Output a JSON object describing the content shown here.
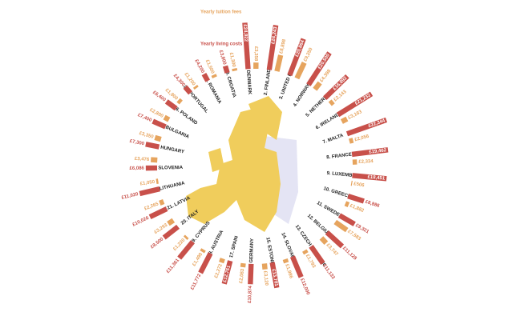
{
  "chart_data": {
    "type": "radial-bar",
    "categories": [
      "1. DENMARK",
      "2. FINLAND",
      "3. UNITED KINGDOM",
      "4. NORWAY",
      "5. NETHERLANDS",
      "6. IRELAND",
      "7. MALTA",
      "8. FRANCE",
      "9. LUXEMBOURG",
      "10. GREECE",
      "11. SWEDEN",
      "12. BELGIUM",
      "13. CZECH REPUBLIC",
      "14. SLOVAKIA",
      "15. ESTONIA",
      "16. GERMANY",
      "17. SPAIN",
      "18. AUSTRIA",
      "19. CYPRUS",
      "20. ITALY",
      "21. LATVIA",
      "22. LITHUANIA",
      "23. SLOVENIA",
      "24. HUNGARY",
      "25. BULGARIA",
      "26. POLAND",
      "27. PORTUGAL",
      "28. ROMANIA",
      "29. CROATIA"
    ],
    "series": [
      {
        "name": "Yearly living costs",
        "color": "#c8504a",
        "values": [
          24922,
          24243,
          20864,
          20500,
          16892,
          21232,
          22344,
          19462,
          18451,
          8886,
          9321,
          11128,
          11133,
          12000,
          13781,
          10874,
          12761,
          11772,
          11361,
          9500,
          10026,
          11020,
          6086,
          7300,
          7400,
          6400,
          4300,
          4200,
          3800
        ],
        "value_labels": [
          "£24,922",
          "£24,243",
          "£20,864",
          "£20,500",
          "£16,892",
          "£21,232",
          "£22,344",
          "£19,462",
          "£18,451",
          "£8,886",
          "£9,321",
          "£11,128",
          "£11,133",
          "£12,000",
          "£13,781",
          "£10,874",
          "£12,761",
          "£11,772",
          "£11,361",
          "£9,500",
          "£10,026",
          "£11,020",
          "£6,086",
          "£7,300",
          "£7,400",
          "£6,400",
          "£4,300",
          "£4,200",
          "£3,800"
        ]
      },
      {
        "name": "Yearly tuition fees",
        "color": "#e6a45e",
        "values": [
          3358,
          8898,
          9250,
          4398,
          2143,
          3163,
          2056,
          2334,
          506,
          1882,
          7583,
          3747,
          1793,
          1986,
          3120,
          2083,
          2272,
          1490,
          1220,
          3293,
          2265,
          1050,
          3476,
          3350,
          2800,
          1900,
          1200,
          1500,
          1300
        ],
        "value_labels": [
          "£3,358",
          "£8,898",
          "£9,250",
          "£4,398",
          "£2,143",
          "£3,163",
          "£2,056",
          "£2,334",
          "£506",
          "£1,882",
          "£7,583",
          "£3,747",
          "£1,793",
          "£1,986",
          "£3,120",
          "£2,083",
          "£2,272",
          "£1,490",
          "£1,220",
          "£3,293",
          "£2,265",
          "£1,050",
          "£3,476",
          "£3,350",
          "£2,800",
          "£1,900",
          "£1,200",
          "£1,500",
          "£1,300"
        ]
      }
    ]
  }
}
